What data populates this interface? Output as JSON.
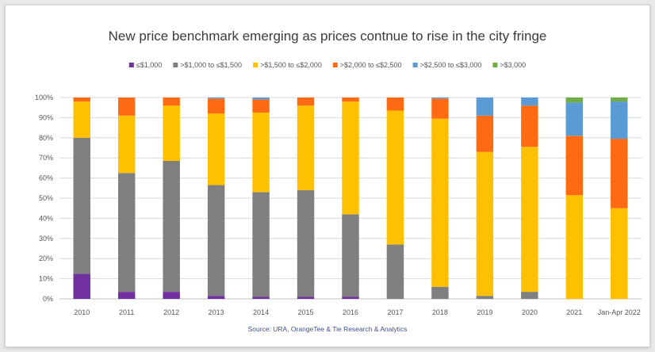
{
  "chart_data": {
    "type": "bar",
    "stacked": true,
    "title": "New price benchmark emerging as prices contnue to rise in the city fringe",
    "source": "Source: URA, OrangeTee & Tie Research & Analytics",
    "xlabel": "",
    "ylabel": "",
    "ylim": [
      0,
      100
    ],
    "y_ticks": [
      "0%",
      "10%",
      "20%",
      "30%",
      "40%",
      "50%",
      "60%",
      "70%",
      "80%",
      "90%",
      "100%"
    ],
    "grid": true,
    "legend_position": "top",
    "categories": [
      "2010",
      "2011",
      "2012",
      "2013",
      "2014",
      "2015",
      "2016",
      "2017",
      "2018",
      "2019",
      "2020",
      "2021",
      "Jan-Apr 2022"
    ],
    "series": [
      {
        "name": "≤$1,000",
        "color": "#7030a0",
        "values": [
          12.5,
          3.5,
          3.5,
          1.5,
          1.0,
          1.0,
          1.0,
          0,
          0,
          0,
          0,
          0,
          0
        ]
      },
      {
        "name": ">$1,000 to ≤$1,500",
        "color": "#7f7f7f",
        "values": [
          67.5,
          59.0,
          65.0,
          55.0,
          52.0,
          53.0,
          41.0,
          27.0,
          6.0,
          1.5,
          3.5,
          0,
          0
        ]
      },
      {
        "name": ">$1,500 to ≤$2,000",
        "color": "#ffc000",
        "values": [
          18.0,
          28.5,
          27.5,
          35.5,
          39.5,
          42.0,
          56.0,
          66.5,
          83.5,
          71.5,
          72.0,
          51.5,
          45.0
        ]
      },
      {
        "name": ">$2,000 to ≤$2,500",
        "color": "#ff6a13",
        "values": [
          2.0,
          9.0,
          4.0,
          7.5,
          6.5,
          4.0,
          2.0,
          6.5,
          10.0,
          18.0,
          20.5,
          29.5,
          34.5
        ]
      },
      {
        "name": ">$2,500 to ≤$3,000",
        "color": "#5b9bd5",
        "values": [
          0,
          0,
          0,
          0.5,
          1.0,
          0,
          0,
          0,
          0.5,
          9.0,
          4.0,
          16.5,
          18.5
        ]
      },
      {
        "name": ">$3,000",
        "color": "#70ad47",
        "values": [
          0,
          0,
          0,
          0,
          0,
          0,
          0,
          0,
          0,
          0,
          0,
          2.5,
          2.0
        ]
      }
    ]
  }
}
